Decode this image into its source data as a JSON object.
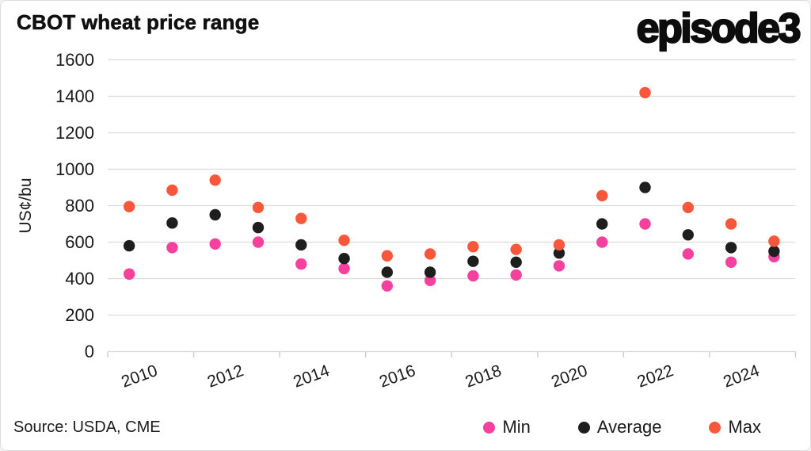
{
  "header": {
    "title": "CBOT wheat price range",
    "logo": "episode3"
  },
  "footer": {
    "source": "Source: USDA, CME"
  },
  "chart_data": {
    "type": "scatter",
    "title": "CBOT wheat price range",
    "ylabel": "US¢/bu",
    "xlabel": "",
    "ylim": [
      0,
      1600
    ],
    "ytick_step": 200,
    "grid": true,
    "legend_position": "bottom-right",
    "x": [
      2010,
      2011,
      2012,
      2013,
      2014,
      2015,
      2016,
      2017,
      2018,
      2019,
      2020,
      2021,
      2022,
      2023,
      2024,
      2025
    ],
    "xtick_labels": [
      "2010",
      "2012",
      "2014",
      "2016",
      "2018",
      "2020",
      "2022",
      "2024"
    ],
    "series": [
      {
        "name": "Min",
        "color": "#f5419d",
        "values": [
          425,
          570,
          590,
          600,
          480,
          455,
          360,
          390,
          415,
          420,
          470,
          600,
          700,
          535,
          490,
          520
        ]
      },
      {
        "name": "Average",
        "color": "#1e1e1e",
        "values": [
          580,
          705,
          750,
          680,
          585,
          510,
          435,
          435,
          495,
          490,
          540,
          700,
          900,
          640,
          570,
          550
        ]
      },
      {
        "name": "Max",
        "color": "#f8573c",
        "values": [
          795,
          885,
          940,
          790,
          730,
          610,
          525,
          535,
          575,
          560,
          585,
          855,
          1420,
          790,
          700,
          605
        ]
      }
    ],
    "colors": {
      "gridline": "#dcdcdc",
      "axis": "#c9c9c9",
      "tick_text": "#1a1a1a"
    }
  }
}
